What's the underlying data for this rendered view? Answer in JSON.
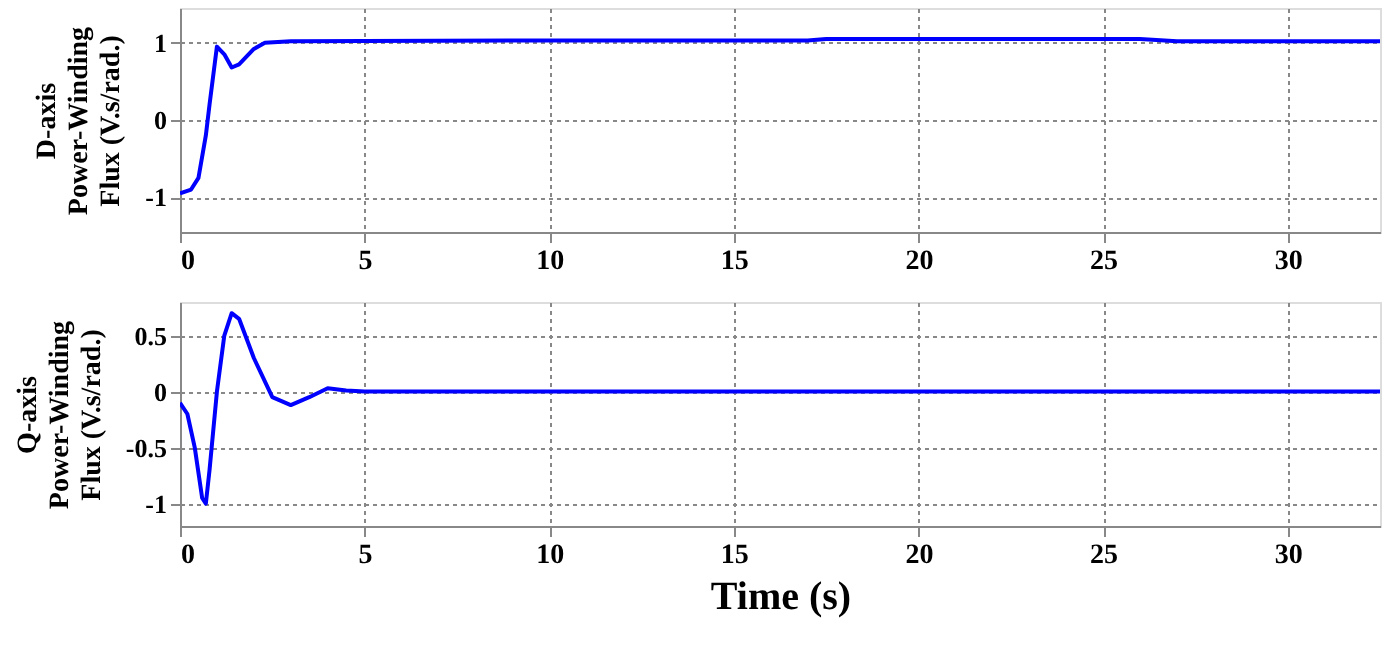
{
  "chart_data": [
    {
      "type": "line",
      "ylabel": "D-axis\nPower-Winding\nFlux (V.s/rad.)",
      "xlim": [
        0,
        32.5
      ],
      "xticks": [
        0,
        5,
        10,
        15,
        20,
        25,
        30
      ],
      "ylim": [
        -1.45,
        1.45
      ],
      "yticks": [
        -1,
        0,
        1
      ],
      "grid": true,
      "line_style": "solid",
      "marker": "none",
      "series": [
        {
          "color": "#0000ff",
          "x": [
            0,
            0.3,
            0.5,
            0.7,
            0.8,
            1.0,
            1.2,
            1.4,
            1.6,
            2.0,
            2.3,
            3,
            10,
            17,
            17.5,
            26,
            27,
            32.5
          ],
          "values": [
            -0.95,
            -0.9,
            -0.75,
            -0.2,
            0.2,
            0.95,
            0.85,
            0.68,
            0.72,
            0.92,
            1.0,
            1.02,
            1.03,
            1.03,
            1.05,
            1.05,
            1.02,
            1.02
          ]
        }
      ]
    },
    {
      "type": "line",
      "ylabel": "Q-axis\nPower-Winding\nFlux (V.s/rad.)",
      "xlabel": "Time (s)",
      "xlim": [
        0,
        32.5
      ],
      "xticks": [
        0,
        5,
        10,
        15,
        20,
        25,
        30
      ],
      "ylim": [
        -1.2,
        0.8
      ],
      "yticks": [
        -1,
        -0.5,
        0,
        0.5
      ],
      "grid": true,
      "line_style": "solid",
      "marker": "none",
      "series": [
        {
          "color": "#0000ff",
          "x": [
            0,
            0.2,
            0.4,
            0.6,
            0.7,
            0.8,
            1.0,
            1.2,
            1.4,
            1.6,
            2,
            2.5,
            3,
            3.5,
            4,
            4.5,
            5,
            32.5
          ],
          "values": [
            -0.1,
            -0.2,
            -0.5,
            -0.95,
            -1.0,
            -0.7,
            0,
            0.5,
            0.7,
            0.65,
            0.3,
            -0.05,
            -0.12,
            -0.05,
            0.03,
            0.01,
            0,
            0
          ]
        }
      ]
    }
  ]
}
